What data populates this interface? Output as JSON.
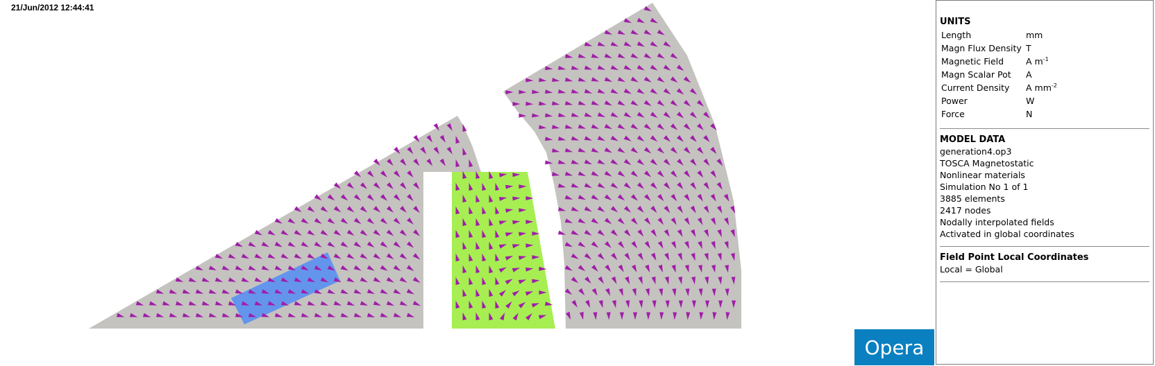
{
  "timestamp": "21/Jun/2012 12:44:41",
  "logo": "Opera",
  "colors": {
    "steel": "#c4c3bf",
    "conductor_blue": "#6495ed",
    "coil_green": "#a6ee52",
    "arrow": "#a01ea8",
    "logo_bg": "#0a80c0"
  },
  "panel": {
    "units": {
      "title": "UNITS",
      "rows": [
        {
          "name": "Length",
          "unit": "mm",
          "exp": ""
        },
        {
          "name": "Magn Flux Density",
          "unit": "T",
          "exp": ""
        },
        {
          "name": "Magnetic Field",
          "unit": "A m",
          "exp": "-1"
        },
        {
          "name": "Magn Scalar Pot",
          "unit": "A",
          "exp": ""
        },
        {
          "name": "Current Density",
          "unit": "A mm",
          "exp": "-2"
        },
        {
          "name": "Power",
          "unit": "W",
          "exp": ""
        },
        {
          "name": "Force",
          "unit": "N",
          "exp": ""
        }
      ]
    },
    "model": {
      "title": "MODEL DATA",
      "lines": [
        "generation4.op3",
        "TOSCA Magnetostatic",
        "Nonlinear materials",
        "Simulation No 1 of 1",
        "3885 elements",
        "2417 nodes",
        "Nodally interpolated fields",
        "Activated in global coordinates"
      ]
    },
    "fieldpoint": {
      "title": "Field Point Local Coordinates",
      "value": "Local = Global"
    }
  }
}
